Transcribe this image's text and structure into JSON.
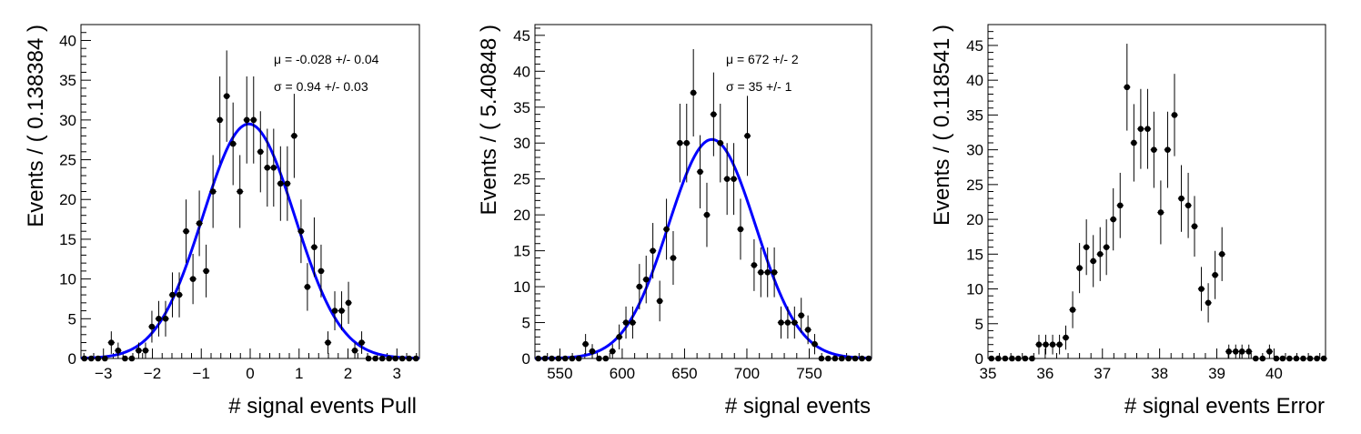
{
  "chart_data": [
    {
      "type": "scatter",
      "xlabel": "# signal events Pull",
      "ylabel": "Events / ( 0.138384 )",
      "xlim": [
        -3.46,
        3.46
      ],
      "ylim": [
        0,
        42
      ],
      "xticks": [
        -3,
        -2,
        -1,
        0,
        1,
        2,
        3
      ],
      "xtick_labels": [
        "−3",
        "−2",
        "−1",
        "0",
        "1",
        "2",
        "3"
      ],
      "yticks": [
        0,
        5,
        10,
        15,
        20,
        25,
        30,
        35,
        40
      ],
      "ytick_labels": [
        "0",
        "5",
        "10",
        "15",
        "20",
        "25",
        "30",
        "35",
        "40"
      ],
      "annotations": [
        "μ = -0.028 +/- 0.04",
        "σ = 0.94 +/- 0.03"
      ],
      "fit": {
        "type": "gaussian",
        "mean": -0.028,
        "sigma": 0.94,
        "amplitude": 29.5,
        "color": "#0000ff"
      },
      "marker_color": "#000000",
      "series": [
        {
          "x": [
            -3.39,
            -3.25,
            -3.11,
            -2.97,
            -2.84,
            -2.7,
            -2.56,
            -2.42,
            -2.28,
            -2.14,
            -2.01,
            -1.87,
            -1.73,
            -1.59,
            -1.45,
            -1.31,
            -1.17,
            -1.04,
            -0.9,
            -0.76,
            -0.62,
            -0.48,
            -0.35,
            -0.21,
            -0.07,
            0.07,
            0.21,
            0.35,
            0.48,
            0.62,
            0.76,
            0.9,
            1.04,
            1.17,
            1.31,
            1.45,
            1.59,
            1.73,
            1.87,
            2.01,
            2.14,
            2.28,
            2.42,
            2.56,
            2.7,
            2.84,
            2.97,
            3.11,
            3.25,
            3.39
          ],
          "y": [
            0,
            0,
            0,
            0,
            2,
            1,
            0,
            0,
            1,
            1,
            4,
            5,
            5,
            8,
            8,
            16,
            10,
            17,
            11,
            21,
            30,
            33,
            27,
            21,
            30,
            30,
            26,
            24,
            24,
            22,
            22,
            28,
            16,
            9,
            14,
            11,
            2,
            6,
            6,
            7,
            1,
            2,
            0,
            0,
            0,
            0,
            0,
            0,
            0,
            0
          ]
        }
      ]
    },
    {
      "type": "scatter",
      "xlabel": "# signal events",
      "ylabel": "Events / ( 5.40848 )",
      "xlim": [
        530,
        800
      ],
      "ylim": [
        0,
        46.5
      ],
      "xticks": [
        550,
        600,
        650,
        700,
        750
      ],
      "xtick_labels": [
        "550",
        "600",
        "650",
        "700",
        "750"
      ],
      "yticks": [
        0,
        5,
        10,
        15,
        20,
        25,
        30,
        35,
        40,
        45
      ],
      "ytick_labels": [
        "0",
        "5",
        "10",
        "15",
        "20",
        "25",
        "30",
        "35",
        "40",
        "45"
      ],
      "annotations": [
        "μ = 672 +/- 2",
        "σ = 35 +/- 1"
      ],
      "fit": {
        "type": "gaussian",
        "mean": 672,
        "sigma": 35,
        "amplitude": 30.5,
        "color": "#0000ff"
      },
      "marker_color": "#000000",
      "series": [
        {
          "x": [
            532.7,
            538.1,
            543.5,
            548.9,
            554.3,
            559.8,
            565.2,
            570.6,
            576.0,
            581.4,
            586.8,
            592.2,
            597.6,
            603.0,
            608.4,
            613.8,
            619.2,
            624.6,
            630.1,
            635.5,
            640.9,
            646.3,
            651.7,
            657.1,
            662.5,
            667.9,
            673.3,
            678.7,
            684.1,
            689.5,
            694.9,
            700.4,
            705.8,
            711.2,
            716.6,
            722.0,
            727.4,
            732.8,
            738.2,
            743.6,
            749.0,
            754.4,
            759.8,
            765.2,
            770.7,
            776.1,
            781.5,
            786.9,
            792.3,
            797.7
          ],
          "y": [
            0,
            0,
            0,
            0,
            0,
            0,
            0,
            2,
            1,
            0,
            0,
            1,
            3,
            5,
            5,
            10,
            11,
            15,
            8,
            18,
            14,
            30,
            30,
            37,
            26,
            20,
            34,
            30,
            25,
            25,
            18,
            31,
            13,
            12,
            12,
            12,
            5,
            5,
            5,
            6,
            4,
            2,
            0,
            0,
            0,
            0,
            0,
            0,
            0,
            0
          ]
        }
      ]
    },
    {
      "type": "scatter",
      "xlabel": "# signal events Error",
      "ylabel": "Events / ( 0.118541 )",
      "xlim": [
        35,
        40.9
      ],
      "ylim": [
        0,
        48
      ],
      "xticks": [
        35,
        36,
        37,
        38,
        39,
        40
      ],
      "xtick_labels": [
        "35",
        "36",
        "37",
        "38",
        "39",
        "40"
      ],
      "yticks": [
        0,
        5,
        10,
        15,
        20,
        25,
        30,
        35,
        40,
        45
      ],
      "ytick_labels": [
        "0",
        "5",
        "10",
        "15",
        "20",
        "25",
        "30",
        "35",
        "40",
        "45"
      ],
      "annotations": [],
      "marker_color": "#000000",
      "series": [
        {
          "x": [
            35.06,
            35.18,
            35.3,
            35.42,
            35.53,
            35.65,
            35.77,
            35.89,
            36.01,
            36.13,
            36.25,
            36.36,
            36.48,
            36.6,
            36.72,
            36.84,
            36.96,
            37.07,
            37.19,
            37.31,
            37.43,
            37.55,
            37.67,
            37.79,
            37.9,
            38.02,
            38.14,
            38.26,
            38.38,
            38.5,
            38.61,
            38.73,
            38.85,
            38.97,
            39.09,
            39.21,
            39.33,
            39.44,
            39.56,
            39.68,
            39.8,
            39.92,
            40.04,
            40.15,
            40.27,
            40.39,
            40.51,
            40.63,
            40.75,
            40.87
          ],
          "y": [
            0,
            0,
            0,
            0,
            0,
            0,
            0,
            2,
            2,
            2,
            2,
            3,
            7,
            13,
            16,
            14,
            15,
            16,
            20,
            22,
            39,
            31,
            33,
            33,
            30,
            21,
            30,
            35,
            23,
            22,
            19,
            10,
            8,
            12,
            15,
            1,
            1,
            1,
            1,
            0,
            0,
            1,
            0,
            0,
            0,
            0,
            0,
            0,
            0,
            0
          ]
        }
      ]
    }
  ]
}
